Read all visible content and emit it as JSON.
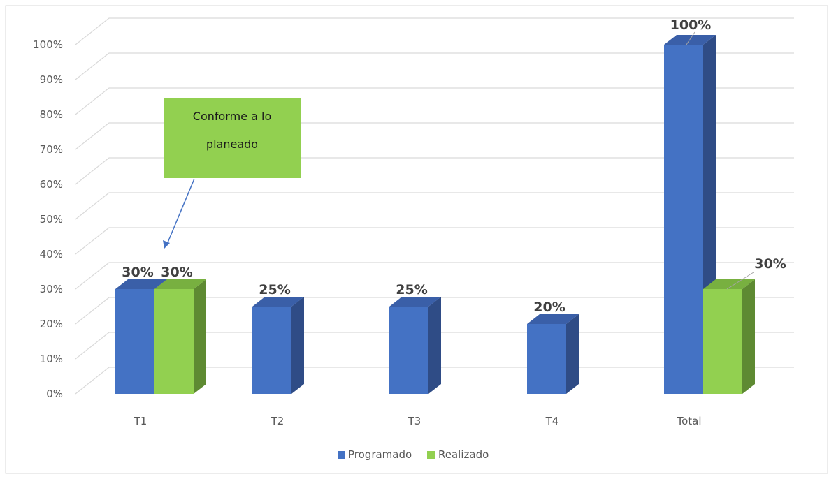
{
  "colors": {
    "programado": "#4472C4",
    "programado_side": "#2F4C86",
    "programado_top": "#3A5FA8",
    "realizado": "#92D050",
    "realizado_side": "#5E8A32",
    "realizado_top": "#78B040",
    "callout": "#92D050",
    "arrow": "#4472C4",
    "grid": "#D9D9D9"
  },
  "chart_data": {
    "type": "bar",
    "categories": [
      "T1",
      "T2",
      "T3",
      "T4",
      "Total"
    ],
    "series": [
      {
        "name": "Programado",
        "values": [
          30,
          25,
          25,
          20,
          100
        ],
        "labels": [
          "30%",
          "25%",
          "25%",
          "20%",
          "100%"
        ]
      },
      {
        "name": "Realizado",
        "values": [
          30,
          null,
          null,
          null,
          30
        ],
        "labels": [
          "30%",
          null,
          null,
          null,
          "30%"
        ]
      }
    ],
    "ylim": [
      0,
      100
    ],
    "yticks": [
      "0%",
      "10%",
      "20%",
      "30%",
      "40%",
      "50%",
      "60%",
      "70%",
      "80%",
      "90%",
      "100%"
    ],
    "grid": true,
    "legend_position": "bottom",
    "three_d": true
  },
  "callout": {
    "line1": "Conforme a lo",
    "line2": "planeado"
  }
}
